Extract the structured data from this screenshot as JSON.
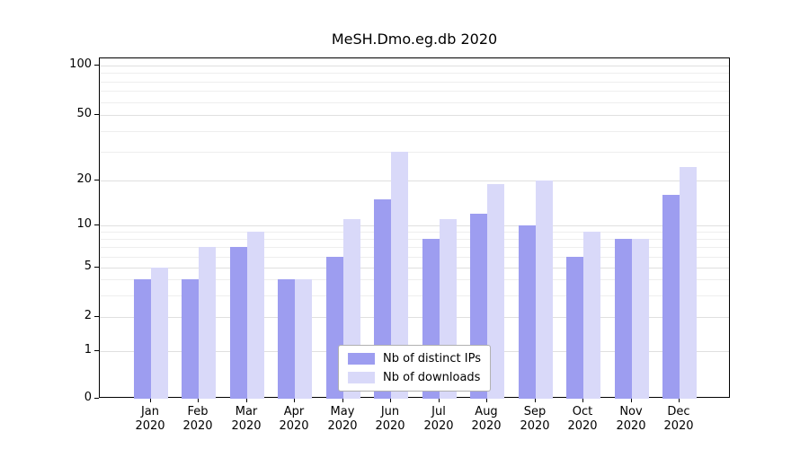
{
  "chart_data": {
    "type": "bar",
    "title": "MeSH.Dmo.eg.db 2020",
    "categories": [
      "Jan 2020",
      "Feb 2020",
      "Mar 2020",
      "Apr 2020",
      "May 2020",
      "Jun 2020",
      "Jul 2020",
      "Aug 2020",
      "Sep 2020",
      "Oct 2020",
      "Nov 2020",
      "Dec 2020"
    ],
    "series": [
      {
        "name": "Nb of distinct IPs",
        "color": "#9d9df0",
        "values": [
          4,
          4,
          7,
          4,
          6,
          15,
          8,
          12,
          10,
          6,
          8,
          16
        ]
      },
      {
        "name": "Nb of downloads",
        "color": "#d9d9f9",
        "values": [
          5,
          7,
          9,
          4,
          11,
          30,
          11,
          19,
          20,
          9,
          8,
          24
        ]
      }
    ],
    "xlabel": "",
    "ylabel": "",
    "yscale": "symlog",
    "yticks": [
      0,
      1,
      2,
      5,
      10,
      20,
      50,
      100
    ],
    "minor_yticks": [
      3,
      4,
      6,
      7,
      8,
      9,
      30,
      40,
      60,
      70,
      80,
      90
    ],
    "ylim": [
      0,
      110
    ],
    "grid": true,
    "legend_position": "lower center",
    "colors": {
      "background": "#ffffff",
      "axis": "#000000",
      "grid_major": "#e0e0e0",
      "grid_minor": "#eeeeee",
      "legend_border": "#b0b0b0"
    }
  }
}
